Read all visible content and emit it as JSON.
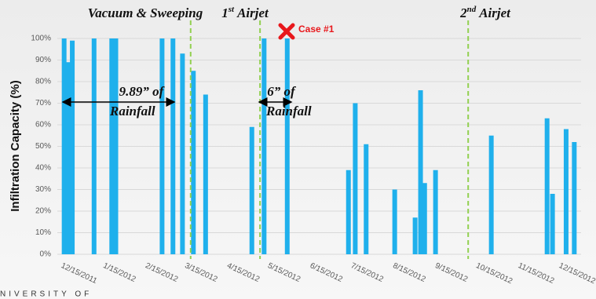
{
  "chart_data": {
    "type": "bar",
    "y_label": "Infiltration Capacity (%)",
    "x": [
      "2011-12-17",
      "2011-12-20",
      "2011-12-23",
      "2012-01-08",
      "2012-01-21",
      "2012-01-24",
      "2012-02-27",
      "2012-03-06",
      "2012-03-13",
      "2012-03-21",
      "2012-03-30",
      "2012-05-03",
      "2012-05-12",
      "2012-05-29",
      "2012-07-13",
      "2012-07-18",
      "2012-07-26",
      "2012-08-16",
      "2012-08-31",
      "2012-09-04",
      "2012-09-07",
      "2012-09-15",
      "2012-10-26",
      "2012-12-06",
      "2012-12-10",
      "2012-12-20",
      "2012-12-26"
    ],
    "values": [
      100,
      89,
      99,
      100,
      100,
      100,
      100,
      100,
      93,
      85,
      74,
      59,
      100,
      100,
      39,
      70,
      51,
      30,
      17,
      76,
      33,
      39,
      55,
      63,
      28,
      58,
      52
    ],
    "color": "#1fb0ec",
    "xlim": [
      "2011-12-12",
      "2012-12-31"
    ],
    "xticks": [
      {
        "value": "2011-12-15",
        "label": "12/15/2011"
      },
      {
        "value": "2012-01-15",
        "label": "1/15/2012"
      },
      {
        "value": "2012-02-15",
        "label": "2/15/2012"
      },
      {
        "value": "2012-03-15",
        "label": "3/15/2012"
      },
      {
        "value": "2012-04-15",
        "label": "4/15/2012"
      },
      {
        "value": "2012-05-15",
        "label": "5/15/2012"
      },
      {
        "value": "2012-06-15",
        "label": "6/15/2012"
      },
      {
        "value": "2012-07-15",
        "label": "7/15/2012"
      },
      {
        "value": "2012-08-15",
        "label": "8/15/2012"
      },
      {
        "value": "2012-09-15",
        "label": "9/15/2012"
      },
      {
        "value": "2012-10-15",
        "label": "10/15/2012"
      },
      {
        "value": "2012-11-15",
        "label": "11/15/2012"
      },
      {
        "value": "2012-12-15",
        "label": "12/15/2012"
      }
    ],
    "ylim": [
      0,
      100
    ],
    "yticks": [
      {
        "value": 0,
        "label": "0%"
      },
      {
        "value": 10,
        "label": "10%"
      },
      {
        "value": 20,
        "label": "20%"
      },
      {
        "value": 30,
        "label": "30%"
      },
      {
        "value": 40,
        "label": "40%"
      },
      {
        "value": 50,
        "label": "50%"
      },
      {
        "value": 60,
        "label": "60%"
      },
      {
        "value": 70,
        "label": "70%"
      },
      {
        "value": 80,
        "label": "80%"
      },
      {
        "value": 90,
        "label": "90%"
      },
      {
        "value": 100,
        "label": "100%"
      }
    ],
    "grid": true,
    "events": [
      {
        "date": "2012-03-19",
        "label": "Vacuum & Sweeping"
      },
      {
        "date": "2012-05-09",
        "num": "1",
        "sup": "st",
        "label": "Airjet"
      },
      {
        "date": "2012-10-09",
        "num": "2",
        "sup": "nd",
        "label": "Airjet"
      }
    ],
    "case_label": "Case #1",
    "rainfall": [
      {
        "amount": "9.89” of",
        "label": "Rainfall"
      },
      {
        "amount": "6” of",
        "label": "Rainfall"
      }
    ],
    "footer": "NIVERSITY OF"
  }
}
